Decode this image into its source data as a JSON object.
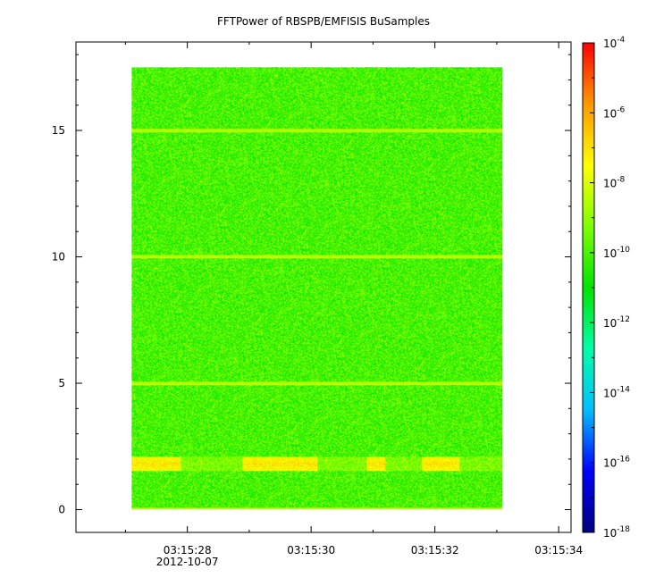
{
  "chart_data": {
    "type": "heatmap",
    "title": "FFTPower of RBSPB/EMFISIS  BuSamples",
    "xlabel": "",
    "ylabel": "",
    "x_axis": {
      "type": "time",
      "ticks": [
        "03:15:28",
        "03:15:30",
        "03:15:32",
        "03:15:34"
      ],
      "tick_seconds": [
        28,
        30,
        32,
        34
      ],
      "date_label": "2012-10-07",
      "xlim_seconds": [
        26.2,
        34.2
      ],
      "data_extent_seconds": [
        27.1,
        33.1
      ]
    },
    "y_axis": {
      "ticks": [
        0,
        5,
        10,
        15
      ],
      "ylim": [
        -0.9,
        18.5
      ],
      "data_extent": [
        0,
        17.5
      ]
    },
    "colorbar": {
      "scale": "log",
      "range_exponents": [
        -18,
        -4
      ],
      "tick_exponents": [
        -18,
        -16,
        -14,
        -12,
        -10,
        -8,
        -6,
        -4
      ],
      "tick_base": "10",
      "colormap": [
        "#00007f",
        "#0000ff",
        "#00bfff",
        "#00ffaa",
        "#00e400",
        "#7fff00",
        "#ffff00",
        "#ff9900",
        "#ff0000"
      ]
    },
    "features": {
      "background_level_exponent": -10,
      "horizontal_lines_y": [
        0,
        5,
        10,
        15
      ],
      "horizontal_line_level_exponent": -8.5,
      "enhancements": [
        {
          "y_center": 1.8,
          "t_start": 27.1,
          "t_end": 27.9
        },
        {
          "y_center": 1.8,
          "t_start": 28.9,
          "t_end": 30.1
        },
        {
          "y_center": 1.8,
          "t_start": 30.9,
          "t_end": 31.2
        },
        {
          "y_center": 1.8,
          "t_start": 31.8,
          "t_end": 32.4
        }
      ],
      "enhancement_level_exponent": -7
    }
  }
}
